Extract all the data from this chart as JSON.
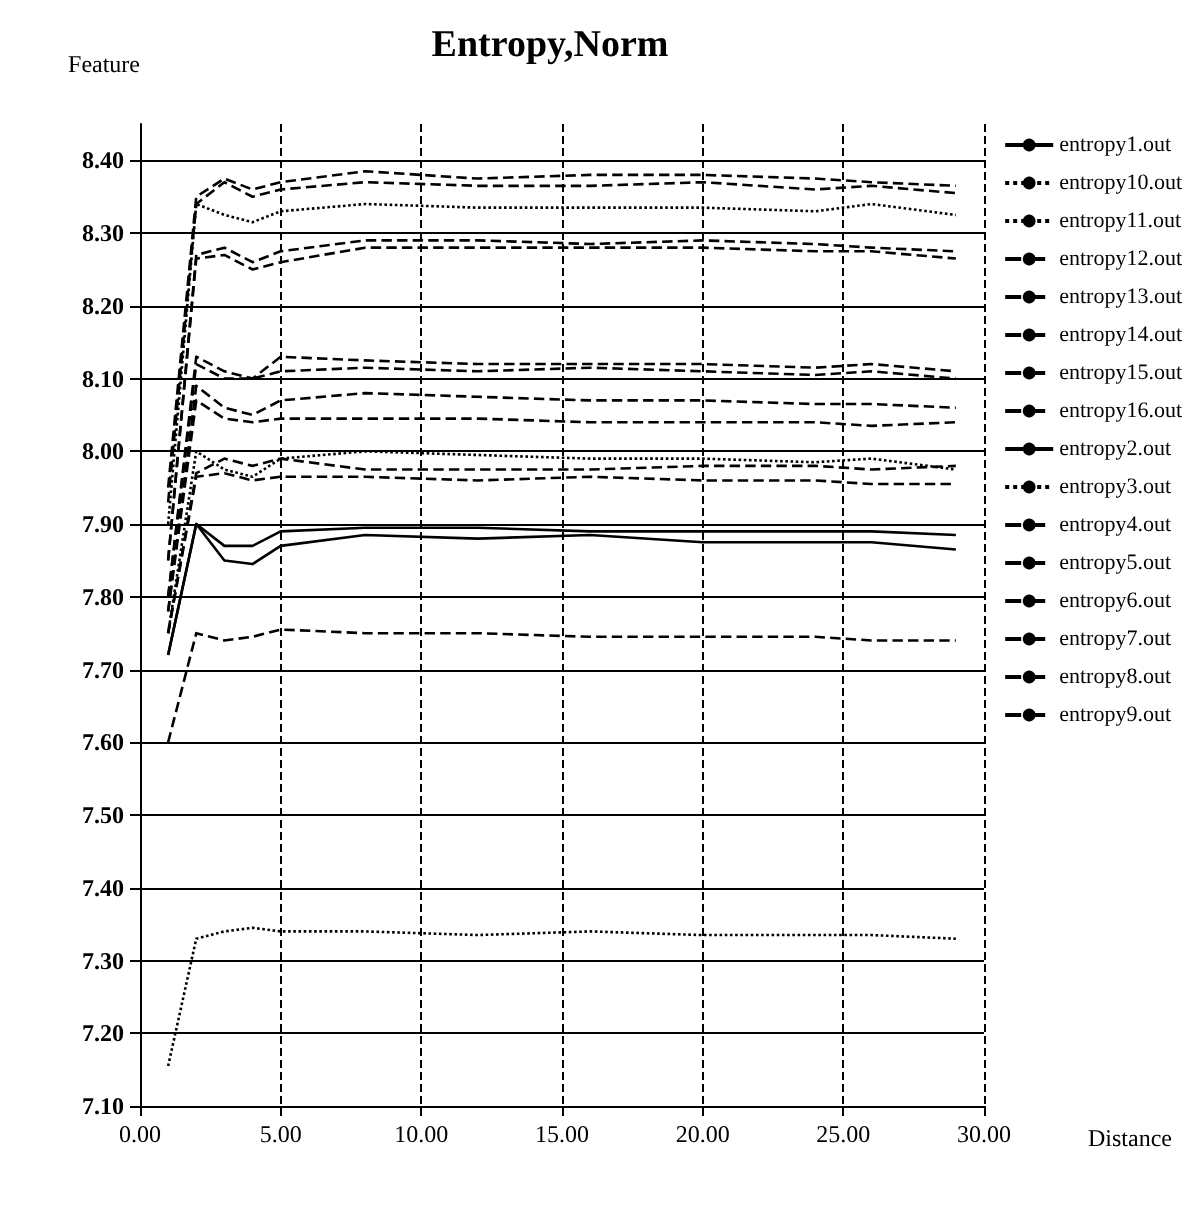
{
  "chart_data": {
    "type": "line",
    "title": "Entropy,Norm",
    "xlabel": "Distance",
    "ylabel": "Feature",
    "x": [
      1,
      2,
      3,
      4,
      5,
      8,
      12,
      16,
      20,
      24,
      26,
      29
    ],
    "xlim": [
      0,
      30
    ],
    "xticks": [
      {
        "value": 0,
        "label": "0.00"
      },
      {
        "value": 5,
        "label": "5.00"
      },
      {
        "value": 10,
        "label": "10.00"
      },
      {
        "value": 15,
        "label": "15.00"
      },
      {
        "value": 20,
        "label": "20.00"
      },
      {
        "value": 25,
        "label": "25.00"
      },
      {
        "value": 30,
        "label": "30.00"
      }
    ],
    "ylim": [
      7.1,
      8.45
    ],
    "yticks": [
      {
        "value": 7.1,
        "label": "7.10"
      },
      {
        "value": 7.2,
        "label": "7.20"
      },
      {
        "value": 7.3,
        "label": "7.30"
      },
      {
        "value": 7.4,
        "label": "7.40"
      },
      {
        "value": 7.5,
        "label": "7.50"
      },
      {
        "value": 7.6,
        "label": "7.60"
      },
      {
        "value": 7.7,
        "label": "7.70"
      },
      {
        "value": 7.8,
        "label": "7.80"
      },
      {
        "value": 7.9,
        "label": "7.90"
      },
      {
        "value": 8.0,
        "label": "8.00"
      },
      {
        "value": 8.1,
        "label": "8.10"
      },
      {
        "value": 8.2,
        "label": "8.20"
      },
      {
        "value": 8.3,
        "label": "8.30"
      },
      {
        "value": 8.4,
        "label": "8.40"
      }
    ],
    "grid": true,
    "legend": "right",
    "marker": "none",
    "series": [
      {
        "name": "entropy1.out",
        "color": "#000000",
        "line_style": "solid",
        "values": [
          7.72,
          7.9,
          7.87,
          7.87,
          7.89,
          7.895,
          7.895,
          7.89,
          7.89,
          7.89,
          7.89,
          7.885
        ]
      },
      {
        "name": "entropy10.out",
        "color": "#000000",
        "line_style": "dotted",
        "values": [
          7.9,
          8.34,
          8.325,
          8.315,
          8.33,
          8.34,
          8.335,
          8.335,
          8.335,
          8.33,
          8.34,
          8.325
        ]
      },
      {
        "name": "entropy11.out",
        "color": "#000000",
        "line_style": "dotted",
        "values": [
          7.155,
          7.33,
          7.34,
          7.345,
          7.34,
          7.34,
          7.335,
          7.34,
          7.335,
          7.335,
          7.335,
          7.33
        ]
      },
      {
        "name": "entropy12.out",
        "color": "#000000",
        "line_style": "dashed",
        "values": [
          7.95,
          8.35,
          8.375,
          8.36,
          8.37,
          8.385,
          8.375,
          8.38,
          8.38,
          8.375,
          8.37,
          8.365
        ]
      },
      {
        "name": "entropy13.out",
        "color": "#000000",
        "line_style": "dashed",
        "values": [
          7.93,
          8.34,
          8.37,
          8.35,
          8.36,
          8.37,
          8.365,
          8.365,
          8.37,
          8.36,
          8.365,
          8.355
        ]
      },
      {
        "name": "entropy14.out",
        "color": "#000000",
        "line_style": "dashed",
        "values": [
          7.85,
          8.27,
          8.28,
          8.26,
          8.275,
          8.29,
          8.29,
          8.285,
          8.29,
          8.285,
          8.28,
          8.275
        ]
      },
      {
        "name": "entropy15.out",
        "color": "#000000",
        "line_style": "dashed",
        "values": [
          7.85,
          8.265,
          8.27,
          8.25,
          8.26,
          8.28,
          8.28,
          8.28,
          8.28,
          8.275,
          8.275,
          8.265
        ]
      },
      {
        "name": "entropy16.out",
        "color": "#000000",
        "line_style": "dashed",
        "values": [
          7.8,
          8.13,
          8.11,
          8.1,
          8.13,
          8.125,
          8.12,
          8.12,
          8.12,
          8.115,
          8.12,
          8.11
        ]
      },
      {
        "name": "entropy2.out",
        "color": "#000000",
        "line_style": "solid",
        "values": [
          7.72,
          7.9,
          7.85,
          7.845,
          7.87,
          7.885,
          7.88,
          7.885,
          7.875,
          7.875,
          7.875,
          7.865
        ]
      },
      {
        "name": "entropy3.out",
        "color": "#000000",
        "line_style": "dotted",
        "values": [
          7.75,
          8.0,
          7.975,
          7.965,
          7.99,
          8.0,
          7.995,
          7.99,
          7.99,
          7.985,
          7.99,
          7.975
        ]
      },
      {
        "name": "entropy4.out",
        "color": "#000000",
        "line_style": "dashed",
        "values": [
          7.8,
          8.12,
          8.1,
          8.1,
          8.11,
          8.115,
          8.11,
          8.115,
          8.11,
          8.105,
          8.11,
          8.1
        ]
      },
      {
        "name": "entropy5.out",
        "color": "#000000",
        "line_style": "dashed",
        "values": [
          7.78,
          8.09,
          8.06,
          8.05,
          8.07,
          8.08,
          8.075,
          8.07,
          8.07,
          8.065,
          8.065,
          8.06
        ]
      },
      {
        "name": "entropy6.out",
        "color": "#000000",
        "line_style": "dashed",
        "values": [
          7.78,
          8.07,
          8.045,
          8.04,
          8.045,
          8.045,
          8.045,
          8.04,
          8.04,
          8.04,
          8.035,
          8.04
        ]
      },
      {
        "name": "entropy7.out",
        "color": "#000000",
        "line_style": "dashed",
        "values": [
          7.75,
          7.97,
          7.99,
          7.98,
          7.99,
          7.975,
          7.975,
          7.975,
          7.98,
          7.98,
          7.975,
          7.98
        ]
      },
      {
        "name": "entropy8.out",
        "color": "#000000",
        "line_style": "dashed",
        "values": [
          7.75,
          7.965,
          7.97,
          7.96,
          7.965,
          7.965,
          7.96,
          7.965,
          7.96,
          7.96,
          7.955,
          7.955
        ]
      },
      {
        "name": "entropy9.out",
        "color": "#000000",
        "line_style": "dashed",
        "values": [
          7.6,
          7.75,
          7.74,
          7.745,
          7.755,
          7.75,
          7.75,
          7.745,
          7.745,
          7.745,
          7.74,
          7.74
        ]
      }
    ]
  }
}
